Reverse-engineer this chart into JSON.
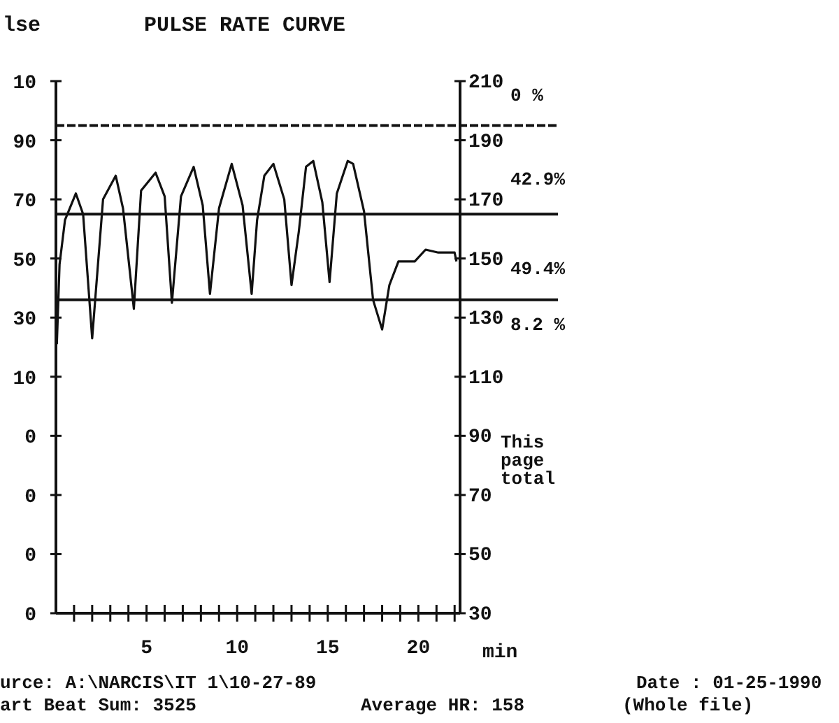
{
  "chart_data": {
    "type": "line",
    "title": "PULSE RATE CURVE",
    "ylabel": "lse",
    "xlabel": "min",
    "x": [
      0.05,
      0.2,
      0.5,
      1.1,
      1.5,
      2.0,
      2.6,
      3.3,
      3.7,
      4.3,
      4.7,
      5.5,
      6.0,
      6.4,
      6.9,
      7.6,
      8.1,
      8.5,
      9.0,
      9.7,
      10.3,
      10.8,
      11.1,
      11.5,
      12.0,
      12.6,
      13.0,
      13.4,
      13.8,
      14.2,
      14.7,
      15.1,
      15.5,
      16.1,
      16.4,
      17.0,
      17.5,
      18.0,
      18.4,
      18.9,
      19.8,
      20.4,
      21.1,
      22.0,
      22.1
    ],
    "series": [
      {
        "color": "#111111",
        "axis": "y2",
        "values": [
          121,
          148,
          163,
          172,
          165,
          123,
          170,
          178,
          167,
          133,
          173,
          179,
          171,
          135,
          171,
          181,
          168,
          138,
          167,
          182,
          168,
          138,
          163,
          178,
          182,
          170,
          141,
          159,
          181,
          183,
          169,
          142,
          172,
          183,
          182,
          166,
          136,
          126,
          141,
          149,
          149,
          153,
          152,
          152,
          149
        ]
      }
    ],
    "xlim": [
      0,
      22.3
    ],
    "xticks": [
      {
        "value": 1,
        "label": null
      },
      {
        "value": 2,
        "label": null
      },
      {
        "value": 3,
        "label": null
      },
      {
        "value": 4,
        "label": null
      },
      5,
      {
        "value": 6,
        "label": null
      },
      {
        "value": 7,
        "label": null
      },
      {
        "value": 8,
        "label": null
      },
      {
        "value": 9,
        "label": null
      },
      10,
      {
        "value": 11,
        "label": null
      },
      {
        "value": 12,
        "label": null
      },
      {
        "value": 13,
        "label": null
      },
      {
        "value": 14,
        "label": null
      },
      15,
      {
        "value": 16,
        "label": null
      },
      {
        "value": 17,
        "label": null
      },
      {
        "value": 18,
        "label": null
      },
      {
        "value": 19,
        "label": null
      },
      20,
      {
        "value": 21,
        "label": null
      },
      {
        "value": 22,
        "label": null
      }
    ],
    "y2lim": [
      30,
      210
    ],
    "y2ticks": [
      30,
      50,
      70,
      90,
      110,
      130,
      150,
      170,
      190,
      210
    ],
    "ref_lines": [
      {
        "axis": "y2",
        "value": 195,
        "line_style": "dashed"
      },
      {
        "axis": "y2",
        "value": 165
      },
      {
        "axis": "y2",
        "value": 136
      }
    ],
    "annotations": [
      "0 %",
      "42.9%",
      "49.4%",
      "8.2 %",
      "This\npage\ntotal",
      "urce:  A:\\NARCIS\\IT 1\\10-27-89",
      "Date : 01-25-1990",
      "art Beat Sum:  3525",
      "Average HR:  158",
      "(Whole file)",
      "0",
      "0",
      "0",
      "0",
      "10",
      "30",
      "50",
      "70",
      "90",
      "10"
    ],
    "grid": false
  }
}
